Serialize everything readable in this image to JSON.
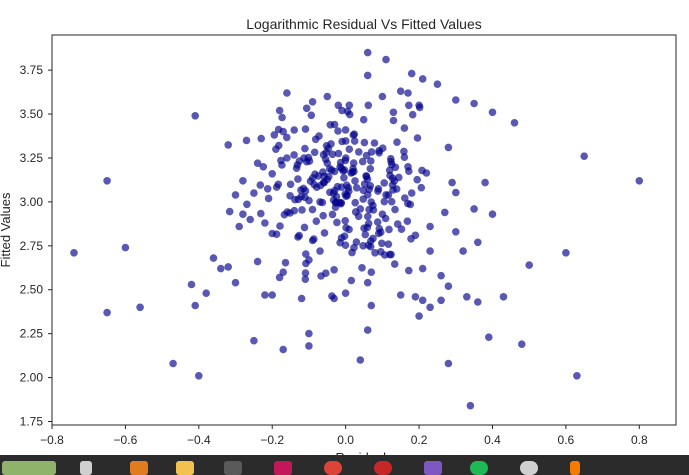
{
  "chart_data": {
    "type": "scatter",
    "title": "Logarithmic Residual Vs Fitted Values",
    "xlabel": "Residuals",
    "ylabel": "Fitted Values",
    "xlim": [
      -0.8,
      0.9
    ],
    "ylim": [
      1.73,
      3.95
    ],
    "xticks": [
      "−0.8",
      "−0.6",
      "−0.4",
      "−0.2",
      "0.0",
      "0.2",
      "0.4",
      "0.6",
      "0.8"
    ],
    "xtick_values": [
      -0.8,
      -0.6,
      -0.4,
      -0.2,
      0.0,
      0.2,
      0.4,
      0.6,
      0.8
    ],
    "yticks": [
      "1.75",
      "2.00",
      "2.25",
      "2.50",
      "2.75",
      "3.00",
      "3.25",
      "3.50",
      "3.75"
    ],
    "ytick_values": [
      1.75,
      2.0,
      2.25,
      2.5,
      2.75,
      3.0,
      3.25,
      3.5,
      3.75
    ],
    "grid": false,
    "marker_color": "#00008b",
    "seed": 7,
    "points": [
      [
        -0.74,
        2.71
      ],
      [
        -0.65,
        3.12
      ],
      [
        -0.65,
        2.37
      ],
      [
        -0.6,
        2.74
      ],
      [
        -0.56,
        2.4
      ],
      [
        -0.47,
        2.08
      ],
      [
        -0.42,
        2.53
      ],
      [
        -0.41,
        2.41
      ],
      [
        -0.41,
        3.49
      ],
      [
        -0.4,
        2.01
      ],
      [
        -0.38,
        2.48
      ],
      [
        -0.36,
        2.68
      ],
      [
        -0.34,
        2.62
      ],
      [
        -0.32,
        2.63
      ],
      [
        -0.3,
        2.54
      ],
      [
        -0.28,
        2.93
      ],
      [
        -0.25,
        2.21
      ],
      [
        -0.24,
        2.66
      ],
      [
        -0.22,
        2.47
      ],
      [
        -0.2,
        2.47
      ],
      [
        -0.17,
        2.16
      ],
      [
        -0.1,
        2.18
      ],
      [
        -0.1,
        2.25
      ],
      [
        0.04,
        2.1
      ],
      [
        0.06,
        2.27
      ],
      [
        0.07,
        2.41
      ],
      [
        0.2,
        2.35
      ],
      [
        0.28,
        2.08
      ],
      [
        0.34,
        1.84
      ],
      [
        0.36,
        2.43
      ],
      [
        0.39,
        2.23
      ],
      [
        0.43,
        2.46
      ],
      [
        0.48,
        2.19
      ],
      [
        0.5,
        2.64
      ],
      [
        0.6,
        2.71
      ],
      [
        0.63,
        2.01
      ],
      [
        0.65,
        3.26
      ],
      [
        0.8,
        3.12
      ],
      [
        0.06,
        3.85
      ],
      [
        0.11,
        3.81
      ],
      [
        0.06,
        3.72
      ],
      [
        0.18,
        3.73
      ],
      [
        0.21,
        3.7
      ],
      [
        0.25,
        3.67
      ],
      [
        0.3,
        3.58
      ],
      [
        0.35,
        3.56
      ],
      [
        0.4,
        3.51
      ],
      [
        0.46,
        3.45
      ],
      [
        0.38,
        3.11
      ],
      [
        0.4,
        2.93
      ],
      [
        0.35,
        2.96
      ],
      [
        0.36,
        2.77
      ],
      [
        0.3,
        2.83
      ],
      [
        0.26,
        2.58
      ],
      [
        0.28,
        2.52
      ],
      [
        0.29,
        3.11
      ],
      [
        0.28,
        3.31
      ],
      [
        0.27,
        2.94
      ],
      [
        0.26,
        2.44
      ],
      [
        0.23,
        2.72
      ],
      [
        0.23,
        2.86
      ],
      [
        0.21,
        2.62
      ],
      [
        0.21,
        2.44
      ],
      [
        0.19,
        2.81
      ],
      [
        0.18,
        3.05
      ],
      [
        0.17,
        3.2
      ],
      [
        0.17,
        3.62
      ],
      [
        0.16,
        3.42
      ],
      [
        0.15,
        3.63
      ],
      [
        0.14,
        3.34
      ],
      [
        0.13,
        3.51
      ],
      [
        0.12,
        3.18
      ],
      [
        0.11,
        3.04
      ],
      [
        0.1,
        2.93
      ],
      [
        0.09,
        2.82
      ],
      [
        0.08,
        2.71
      ],
      [
        0.07,
        2.6
      ],
      [
        0.06,
        2.54
      ],
      [
        0.05,
        2.85
      ],
      [
        0.04,
        2.96
      ],
      [
        0.03,
        3.08
      ],
      [
        0.02,
        3.19
      ],
      [
        0.01,
        3.3
      ],
      [
        0.0,
        3.41
      ],
      [
        -0.01,
        3.52
      ],
      [
        -0.02,
        3.55
      ],
      [
        -0.03,
        3.44
      ],
      [
        -0.04,
        3.33
      ],
      [
        -0.05,
        3.22
      ],
      [
        -0.06,
        3.11
      ],
      [
        -0.07,
        3.0
      ],
      [
        -0.08,
        2.89
      ],
      [
        -0.09,
        2.78
      ],
      [
        -0.1,
        2.67
      ],
      [
        -0.11,
        2.56
      ],
      [
        -0.12,
        2.45
      ],
      [
        -0.13,
        2.8
      ],
      [
        -0.14,
        2.95
      ],
      [
        -0.15,
        3.1
      ],
      [
        -0.16,
        3.25
      ],
      [
        -0.17,
        3.4
      ],
      [
        -0.18,
        3.52
      ],
      [
        -0.19,
        3.3
      ],
      [
        -0.2,
        3.16
      ],
      [
        -0.21,
        3.02
      ],
      [
        -0.22,
        2.88
      ],
      [
        -0.23,
        3.36
      ],
      [
        -0.24,
        3.22
      ],
      [
        -0.25,
        3.05
      ],
      [
        -0.26,
        2.9
      ],
      [
        -0.27,
        3.35
      ],
      [
        -0.28,
        3.12
      ],
      [
        -0.29,
        2.86
      ],
      [
        -0.3,
        3.04
      ],
      [
        -0.16,
        3.62
      ],
      [
        -0.09,
        3.57
      ],
      [
        -0.05,
        3.6
      ],
      [
        0.01,
        3.55
      ],
      [
        0.1,
        3.6
      ],
      [
        0.2,
        3.55
      ],
      [
        -0.17,
        2.6
      ],
      [
        0.0,
        2.48
      ],
      [
        0.15,
        2.47
      ],
      [
        0.19,
        2.46
      ],
      [
        0.32,
        2.72
      ],
      [
        0.33,
        2.46
      ],
      [
        -0.2,
        2.82
      ],
      [
        -0.07,
        2.72
      ],
      [
        0.12,
        2.7
      ],
      [
        0.23,
        2.4
      ]
    ]
  }
}
